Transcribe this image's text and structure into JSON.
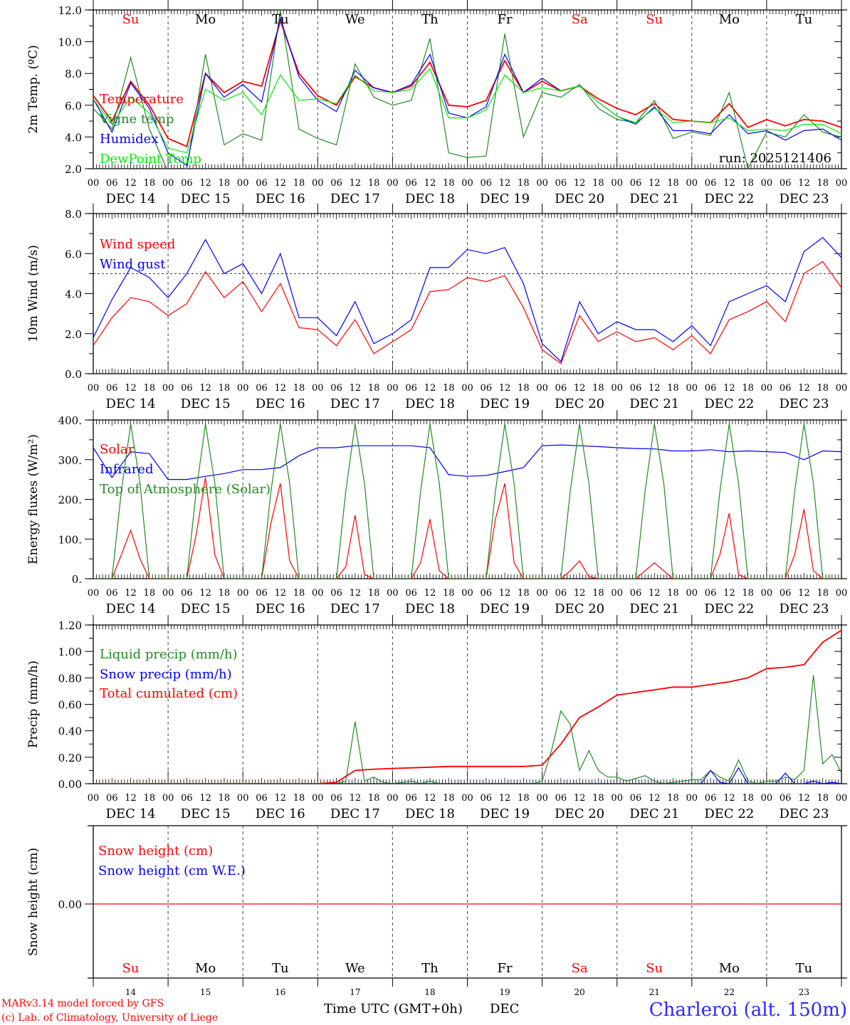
{
  "days": {
    "dow": [
      "Su",
      "Mo",
      "Tu",
      "We",
      "Th",
      "Fr",
      "Sa",
      "Su",
      "Mo",
      "Tu"
    ],
    "dow_colors": [
      "#ff0000",
      "#000000",
      "#000000",
      "#000000",
      "#000000",
      "#000000",
      "#ff0000",
      "#ff0000",
      "#000000",
      "#000000"
    ],
    "dates": [
      "DEC 14",
      "DEC 15",
      "DEC 16",
      "DEC 17",
      "DEC 18",
      "DEC 19",
      "DEC 20",
      "DEC 21",
      "DEC 22",
      "DEC 23"
    ],
    "day_numbers": [
      "14",
      "15",
      "16",
      "17",
      "18",
      "19",
      "20",
      "21",
      "22",
      "23"
    ],
    "hour_ticks": [
      "00",
      "06",
      "12",
      "18"
    ]
  },
  "footer": {
    "model": "MARv3.14 model forced by GFS",
    "copyright": "(c) Lab. of Climatology, University of Liege",
    "time_label": "Time UTC (GMT+0h)",
    "month": "DEC",
    "station": "Charleroi (alt. 150m)"
  },
  "chart_data": [
    {
      "type": "line",
      "ylabel": "2m Temp. (ºC)",
      "ylim": [
        2,
        12
      ],
      "yticks": [
        "2.0",
        "4.0",
        "6.0",
        "8.0",
        "10.0",
        "12.0"
      ],
      "annotation": "run: 2025121406",
      "series": [
        {
          "name": "Temperature",
          "color": "#ff0000",
          "step_hours": 6,
          "values": [
            6.6,
            5.0,
            7.5,
            6.0,
            3.9,
            3.4,
            8.0,
            6.8,
            7.5,
            7.2,
            11.3,
            8.0,
            6.6,
            6.0,
            7.8,
            7.1,
            6.8,
            7.2,
            8.7,
            6.0,
            5.9,
            6.3,
            8.8,
            6.8,
            7.5,
            6.9,
            7.2,
            6.4,
            5.8,
            5.4,
            6.1,
            5.1,
            5.0,
            4.9,
            6.1,
            4.6,
            5.1,
            4.7,
            5.1,
            5.0,
            4.6
          ]
        },
        {
          "name": "Vigne temp",
          "color": "#228b22",
          "step_hours": 6,
          "values": [
            5.8,
            4.5,
            9.0,
            4.5,
            1.8,
            2.0,
            9.2,
            3.5,
            4.2,
            3.8,
            12.0,
            4.5,
            3.9,
            3.5,
            8.6,
            6.5,
            6.0,
            6.3,
            10.2,
            3.0,
            2.7,
            2.8,
            10.5,
            4.0,
            6.8,
            6.5,
            7.3,
            5.8,
            5.1,
            4.9,
            6.3,
            3.9,
            4.3,
            4.1,
            6.8,
            2.0,
            4.3,
            4.0,
            5.4,
            4.3,
            4.0
          ]
        },
        {
          "name": "Humidex",
          "color": "#0000ff",
          "step_hours": 6,
          "values": [
            6.4,
            4.3,
            7.4,
            5.8,
            3.0,
            2.2,
            8.0,
            6.5,
            7.3,
            6.2,
            11.5,
            7.8,
            6.3,
            5.6,
            8.2,
            7.1,
            6.8,
            7.3,
            9.2,
            5.5,
            5.2,
            5.9,
            9.2,
            6.8,
            7.7,
            6.9,
            7.2,
            6.2,
            5.3,
            4.8,
            5.9,
            4.4,
            4.4,
            4.2,
            5.4,
            4.2,
            4.4,
            3.8,
            4.4,
            4.5,
            3.8
          ]
        },
        {
          "name": "DewPoint Temp",
          "color": "#00ee00",
          "step_hours": 6,
          "values": [
            6.4,
            4.8,
            6.5,
            5.5,
            3.3,
            3.0,
            7.0,
            6.3,
            6.8,
            5.4,
            7.9,
            6.3,
            6.4,
            6.1,
            7.9,
            6.9,
            6.8,
            7.0,
            8.3,
            5.2,
            5.2,
            5.7,
            7.9,
            6.8,
            7.1,
            6.9,
            7.2,
            6.2,
            5.3,
            4.9,
            5.8,
            4.9,
            5.0,
            4.9,
            5.2,
            4.4,
            4.5,
            4.4,
            4.8,
            4.8,
            4.2
          ]
        }
      ]
    },
    {
      "type": "line",
      "ylabel": "10m Wind (m/s)",
      "ylim": [
        0,
        8
      ],
      "yticks": [
        "0.0",
        "2.0",
        "4.0",
        "6.0",
        "8.0"
      ],
      "threshold": 5.0,
      "series": [
        {
          "name": "Wind speed",
          "color": "#ff0000",
          "step_hours": 6,
          "values": [
            1.4,
            2.8,
            3.8,
            3.6,
            2.9,
            3.5,
            5.1,
            3.8,
            4.6,
            3.1,
            4.5,
            2.3,
            2.2,
            1.4,
            2.7,
            1.0,
            1.6,
            2.2,
            4.1,
            4.2,
            4.8,
            4.6,
            4.9,
            3.3,
            1.2,
            0.5,
            2.9,
            1.6,
            2.1,
            1.6,
            1.8,
            1.2,
            1.9,
            1.0,
            2.7,
            3.1,
            3.6,
            2.6,
            5.0,
            5.6,
            4.3
          ]
        },
        {
          "name": "Wind gust",
          "color": "#0000ff",
          "step_hours": 6,
          "values": [
            1.8,
            3.7,
            5.3,
            4.8,
            3.8,
            5.0,
            6.7,
            5.0,
            5.5,
            4.0,
            6.0,
            2.8,
            2.8,
            1.9,
            3.6,
            1.5,
            2.0,
            2.7,
            5.3,
            5.3,
            6.2,
            6.0,
            6.3,
            4.5,
            1.5,
            0.6,
            3.6,
            2.0,
            2.6,
            2.2,
            2.2,
            1.6,
            2.4,
            1.4,
            3.6,
            4.0,
            4.4,
            3.6,
            6.1,
            6.8,
            5.8
          ]
        }
      ]
    },
    {
      "type": "line",
      "ylabel": "Energy fluxes (W/m²)",
      "ylim": [
        0,
        400
      ],
      "yticks": [
        "0.",
        "100.",
        "200.",
        "300.",
        "400."
      ],
      "series": [
        {
          "name": "Solar",
          "color": "#ff0000",
          "step_hours": 3,
          "values": [
            0,
            0,
            0,
            60,
            122,
            50,
            0,
            0,
            0,
            0,
            0,
            110,
            255,
            60,
            0,
            0,
            0,
            0,
            0,
            140,
            240,
            45,
            0,
            0,
            0,
            0,
            0,
            30,
            160,
            10,
            0,
            0,
            0,
            0,
            0,
            40,
            150,
            20,
            0,
            0,
            0,
            0,
            0,
            150,
            240,
            40,
            0,
            0,
            0,
            0,
            0,
            20,
            45,
            5,
            0,
            0,
            0,
            0,
            0,
            20,
            40,
            20,
            0,
            0,
            0,
            0,
            0,
            60,
            165,
            10,
            0,
            0,
            0,
            0,
            0,
            60,
            175,
            20,
            0,
            0,
            0
          ]
        },
        {
          "name": "Infrared",
          "color": "#0000ff",
          "step_hours": 6,
          "values": [
            330,
            255,
            320,
            315,
            250,
            250,
            258,
            265,
            275,
            275,
            280,
            310,
            330,
            330,
            335,
            335,
            335,
            335,
            330,
            262,
            258,
            260,
            270,
            280,
            335,
            337,
            335,
            333,
            330,
            328,
            327,
            322,
            322,
            325,
            320,
            322,
            320,
            318,
            300,
            322,
            320
          ]
        },
        {
          "name": "Top of Atmosphere (Solar)",
          "color": "#228b22",
          "step_hours": 3,
          "values": [
            0,
            0,
            0,
            220,
            390,
            240,
            0,
            0,
            0,
            0,
            0,
            220,
            390,
            240,
            0,
            0,
            0,
            0,
            0,
            220,
            390,
            240,
            0,
            0,
            0,
            0,
            0,
            220,
            390,
            240,
            0,
            0,
            0,
            0,
            0,
            220,
            390,
            240,
            0,
            0,
            0,
            0,
            0,
            220,
            390,
            240,
            0,
            0,
            0,
            0,
            0,
            220,
            390,
            240,
            0,
            0,
            0,
            0,
            0,
            220,
            390,
            240,
            0,
            0,
            0,
            0,
            0,
            220,
            390,
            240,
            0,
            0,
            0,
            0,
            0,
            220,
            390,
            240,
            0,
            0,
            0
          ]
        }
      ]
    },
    {
      "type": "line",
      "ylabel": "Precip (mm/h)",
      "ylim": [
        0,
        1.2
      ],
      "yticks": [
        "0.00",
        "0.20",
        "0.40",
        "0.60",
        "0.80",
        "1.00",
        "1.20"
      ],
      "series": [
        {
          "name": "Liquid precip (mm/h)",
          "color": "#228b22",
          "step_hours": 3,
          "values": [
            0,
            0,
            0,
            0,
            0,
            0,
            0,
            0,
            0,
            0,
            0,
            0,
            0,
            0,
            0,
            0,
            0,
            0,
            0,
            0,
            0,
            0,
            0,
            0,
            0,
            0,
            0,
            0.02,
            0.47,
            0.02,
            0.05,
            0.01,
            0,
            0.01,
            0.02,
            0,
            0.02,
            0,
            0,
            0,
            0,
            0,
            0,
            0,
            0,
            0,
            0,
            0,
            0.02,
            0.25,
            0.55,
            0.45,
            0.1,
            0.25,
            0.1,
            0.05,
            0.05,
            0.02,
            0.04,
            0.06,
            0.02,
            0,
            0.01,
            0.02,
            0.03,
            0.03,
            0.1,
            0.05,
            0.02,
            0.18,
            0.02,
            0,
            0.02,
            0.02,
            0.05,
            0.03,
            0.1,
            0.82,
            0.15,
            0.22,
            0.08
          ]
        },
        {
          "name": "Snow precip (mm/h)",
          "color": "#0000ff",
          "step_hours": 3,
          "values": [
            0,
            0,
            0,
            0,
            0,
            0,
            0,
            0,
            0,
            0,
            0,
            0,
            0,
            0,
            0,
            0,
            0,
            0,
            0,
            0,
            0,
            0,
            0,
            0,
            0,
            0,
            0,
            0,
            0,
            0,
            0,
            0,
            0,
            0,
            0,
            0,
            0,
            0,
            0,
            0,
            0,
            0,
            0,
            0,
            0,
            0,
            0,
            0,
            0,
            0,
            0,
            0,
            0,
            0,
            0,
            0,
            0,
            0,
            0,
            0,
            0,
            0,
            0,
            0,
            0,
            0,
            0.1,
            0.01,
            0,
            0.12,
            0,
            0,
            0,
            0,
            0.08,
            0,
            0,
            0.02,
            0,
            0.01,
            0
          ]
        },
        {
          "name": "Total cumulated (cm)",
          "color": "#ff0000",
          "step_hours": 6,
          "values": [
            0,
            0,
            0,
            0,
            0,
            0,
            0,
            0,
            0,
            0,
            0,
            0,
            0,
            0.01,
            0.1,
            0.11,
            0.115,
            0.12,
            0.125,
            0.13,
            0.13,
            0.13,
            0.13,
            0.13,
            0.14,
            0.3,
            0.5,
            0.58,
            0.67,
            0.69,
            0.71,
            0.73,
            0.73,
            0.75,
            0.77,
            0.8,
            0.87,
            0.88,
            0.9,
            1.07,
            1.16
          ]
        }
      ]
    },
    {
      "type": "line",
      "ylabel": "Snow height (cm)",
      "yticks": [
        "0.00"
      ],
      "series": [
        {
          "name": "Snow height (cm)",
          "color": "#ff0000",
          "step_hours": 24,
          "values": [
            0,
            0,
            0,
            0,
            0,
            0,
            0,
            0,
            0,
            0,
            0
          ]
        },
        {
          "name": "Snow height (cm W.E.)",
          "color": "#0000ff",
          "step_hours": 24,
          "values": []
        }
      ]
    }
  ]
}
